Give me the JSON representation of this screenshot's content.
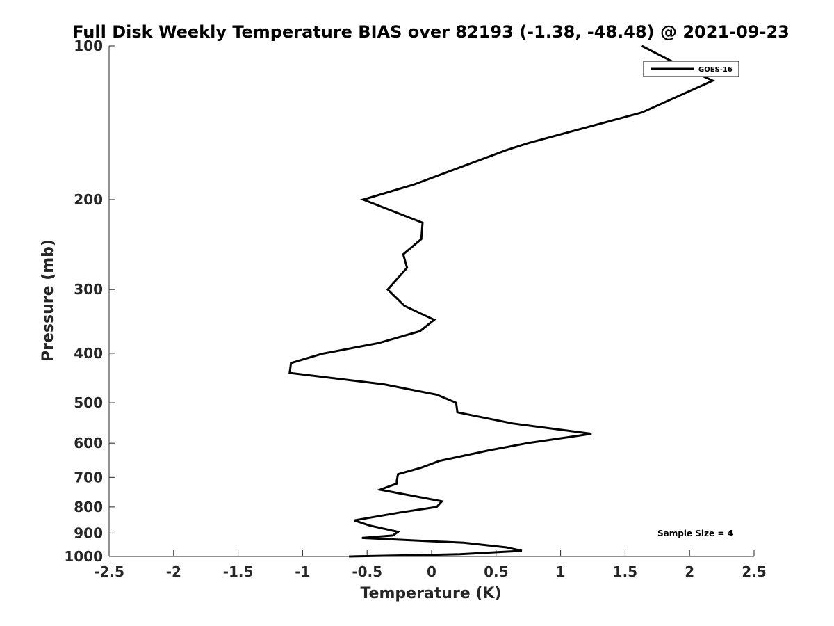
{
  "chart_data": {
    "type": "line",
    "title": "Full Disk Weekly Temperature BIAS over 82193 (-1.38, -48.48) @ 2021-09-23",
    "xlabel": "Temperature (K)",
    "ylabel": "Pressure (mb)",
    "xlim": [
      -2.5,
      2.5
    ],
    "ylim": [
      1000,
      100
    ],
    "y_scale": "log",
    "y_reversed": true,
    "x_ticks": [
      "-2.5",
      "-2",
      "-1.5",
      "-1",
      "-0.5",
      "0",
      "0.5",
      "1",
      "1.5",
      "2",
      "2.5"
    ],
    "y_ticks": [
      "100",
      "200",
      "300",
      "400",
      "500",
      "600",
      "700",
      "800",
      "900",
      "1000"
    ],
    "grid": false,
    "legend_position": "top-right",
    "series": [
      {
        "name": "GOES-16",
        "color": "#000000",
        "points": [
          [
            1.63,
            100
          ],
          [
            1.95,
            110
          ],
          [
            2.18,
            117
          ],
          [
            1.63,
            135
          ],
          [
            0.75,
            155
          ],
          [
            0.58,
            160
          ],
          [
            -0.14,
            187
          ],
          [
            -0.53,
            200
          ],
          [
            -0.07,
            222
          ],
          [
            -0.08,
            239
          ],
          [
            -0.22,
            256
          ],
          [
            -0.19,
            272
          ],
          [
            -0.34,
            300
          ],
          [
            -0.21,
            323
          ],
          [
            0.02,
            344
          ],
          [
            -0.09,
            362
          ],
          [
            -0.41,
            382
          ],
          [
            -0.85,
            401
          ],
          [
            -1.09,
            418
          ],
          [
            -1.1,
            437
          ],
          [
            -0.37,
            460
          ],
          [
            0.04,
            482
          ],
          [
            0.19,
            500
          ],
          [
            0.2,
            522
          ],
          [
            0.63,
            549
          ],
          [
            1.24,
            575
          ],
          [
            0.74,
            600
          ],
          [
            0.44,
            620
          ],
          [
            0.06,
            650
          ],
          [
            -0.08,
            670
          ],
          [
            -0.26,
            690
          ],
          [
            -0.27,
            710
          ],
          [
            -0.27,
            720
          ],
          [
            -0.4,
            740
          ],
          [
            0.08,
            780
          ],
          [
            0.04,
            800
          ],
          [
            -0.24,
            820
          ],
          [
            -0.6,
            850
          ],
          [
            -0.48,
            870
          ],
          [
            -0.26,
            895
          ],
          [
            -0.3,
            910
          ],
          [
            -0.54,
            920
          ],
          [
            0.25,
            940
          ],
          [
            0.58,
            960
          ],
          [
            0.7,
            975
          ],
          [
            0.22,
            990
          ],
          [
            -0.64,
            1000
          ]
        ]
      }
    ],
    "annotation": "Sample Size = 4"
  }
}
